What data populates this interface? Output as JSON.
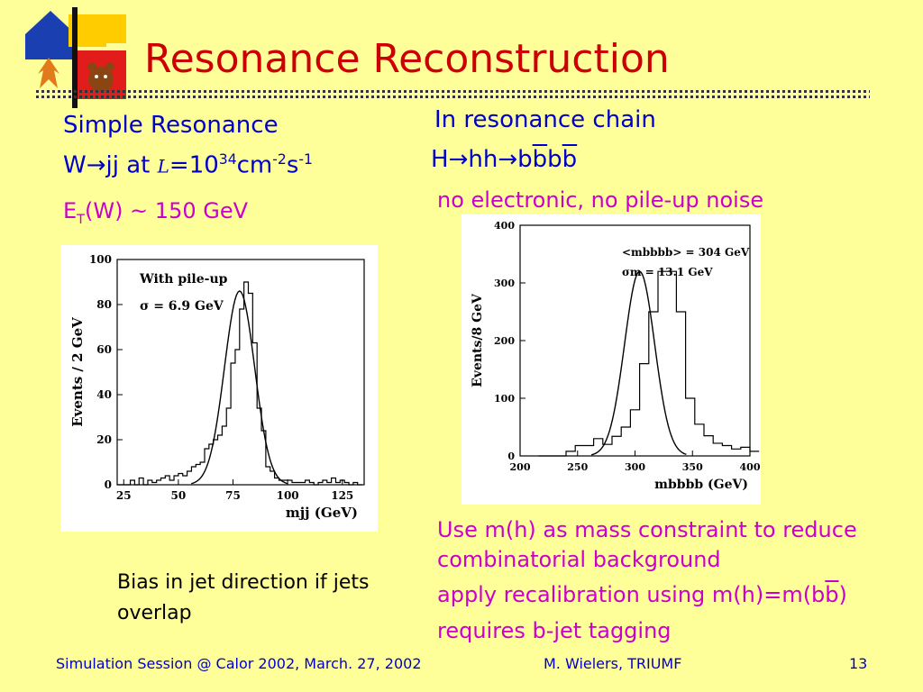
{
  "title": "Resonance Reconstruction",
  "left": {
    "heading": "Simple Resonance",
    "line2": {
      "w": "W",
      "arrow": "→",
      "jj_at": "jj at ",
      "L": "L",
      "eq": "=10",
      "exp34": "34",
      "cm": "cm",
      "expm2": "-2",
      "s": "s",
      "expm1": "-1"
    },
    "line3": {
      "e": "E",
      "sub": "T",
      "rest": "(W) ~ 150 GeV"
    },
    "bias_text": "Bias in jet direction if jets overlap"
  },
  "right": {
    "heading": "In resonance chain",
    "chain": {
      "h": "H",
      "arrow1": "→",
      "hh": "hh",
      "arrow2": "→",
      "b1": "b",
      "bbar1": "b",
      "b2": "b",
      "bbar2": "b"
    },
    "noise": "no electronic, no pile-up noise",
    "bullet1": "Use m(h) as mass constraint to reduce combinatorial background",
    "bullet2": {
      "pre": "apply recalibration using m(h)=m(b",
      "bbar": "b",
      "post": ")"
    },
    "bullet3": "requires b-jet tagging"
  },
  "footer": {
    "left": "Simulation Session @ Calor 2002,  March. 27, 2002",
    "middle": "M. Wielers, TRIUMF",
    "page": "13"
  },
  "colors": {
    "background": "#ffff99",
    "title": "#cc0000",
    "text_blue": "#0000cc",
    "text_magenta": "#cc00cc",
    "logo_blue": "#1a3fb0",
    "logo_red": "#e21b1b",
    "logo_yellow": "#ffcc00"
  },
  "chart_data": [
    {
      "type": "line",
      "title": "",
      "ylabel": "Events / 2 GeV",
      "xlabel": "mjj (GeV)",
      "xlim": [
        22,
        135
      ],
      "ylim": [
        0,
        100
      ],
      "xticks": [
        25,
        50,
        75,
        100,
        125
      ],
      "yticks": [
        0,
        20,
        40,
        60,
        80,
        100
      ],
      "annotations": [
        "With pile-up",
        "σ = 6.9 GeV"
      ],
      "histogram": {
        "bin_width": 2,
        "bin_edges_start": 22,
        "counts": [
          0,
          0,
          0,
          2,
          0,
          3,
          0,
          2,
          1,
          2,
          3,
          4,
          2,
          4,
          5,
          4,
          6,
          8,
          9,
          10,
          16,
          18,
          20,
          22,
          26,
          34,
          54,
          60,
          78,
          90,
          85,
          63,
          34,
          24,
          8,
          6,
          3,
          2,
          2,
          2,
          1,
          1,
          1,
          2,
          1,
          0,
          1,
          2,
          1,
          3,
          1,
          2,
          1,
          0,
          1,
          0
        ]
      },
      "fit": {
        "name": "Gaussian fit",
        "mean": 78,
        "sigma": 6.9,
        "peak": 86
      }
    },
    {
      "type": "line",
      "title": "",
      "ylabel": "Events/8 GeV",
      "xlabel": "mbbbb (GeV)",
      "xlim": [
        200,
        400
      ],
      "ylim": [
        0,
        400
      ],
      "xticks": [
        200,
        250,
        300,
        350,
        400
      ],
      "yticks": [
        0,
        100,
        200,
        300,
        400
      ],
      "annotations": [
        "<mbbbb> = 304 GeV",
        "σm = 13.1 GeV"
      ],
      "histogram": {
        "bin_width": 8,
        "bin_edges_start": 216,
        "counts": [
          0,
          0,
          0,
          8,
          18,
          18,
          30,
          20,
          34,
          50,
          80,
          160,
          250,
          320,
          320,
          250,
          100,
          55,
          35,
          22,
          18,
          12,
          15,
          8
        ]
      },
      "fit": {
        "name": "Gaussian fit",
        "mean": 304,
        "sigma": 13.1,
        "peak": 320
      }
    }
  ]
}
